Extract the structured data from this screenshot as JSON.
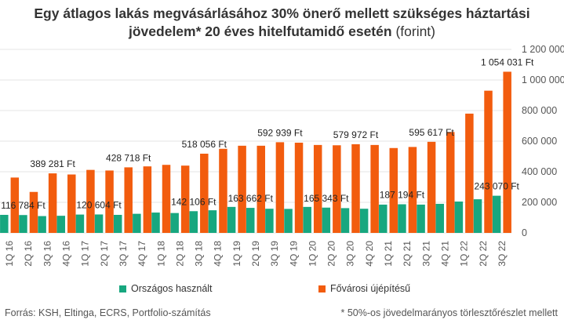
{
  "title": {
    "main": "Egy átlagos lakás megvásárlásához 30% önerő mellett szükséges háztartási",
    "line2_bold": "jövedelem* 20 éves hitelfutamidő esetén",
    "line2_unit": "(forint)"
  },
  "footer": {
    "source": "Forrás: KSH, Eltinga, ECRS, Portfolio-számítás",
    "note": "* 50%-os jövedelmarányos törlesztőrészlet mellett"
  },
  "colors": {
    "teal": "#17a77f",
    "orange": "#f25c0e",
    "grid": "#e6e6e6"
  },
  "chart_data": {
    "type": "bar",
    "categories": [
      "1Q 16",
      "2Q 16",
      "3Q 16",
      "4Q 16",
      "1Q 17",
      "2Q 17",
      "3Q 17",
      "4Q 17",
      "1Q 18",
      "2Q 18",
      "3Q 18",
      "4Q 18",
      "1Q 19",
      "2Q 19",
      "3Q 19",
      "4Q 19",
      "1Q 20",
      "2Q 20",
      "3Q 20",
      "4Q 20",
      "1Q 21",
      "2Q 21",
      "3Q 21",
      "4Q 21",
      "1Q 22",
      "2Q 22",
      "3Q 22"
    ],
    "series": [
      {
        "name": "Országos használt",
        "color": "#17a77f",
        "values": [
          118000,
          116784,
          110000,
          112000,
          120000,
          120604,
          118000,
          125000,
          133000,
          130000,
          142106,
          148000,
          170000,
          163662,
          158000,
          157000,
          170000,
          165343,
          162000,
          158000,
          185000,
          187194,
          185000,
          190000,
          205000,
          220000,
          243070
        ]
      },
      {
        "name": "Fővárosi újépítésű",
        "color": "#f25c0e",
        "values": [
          362000,
          268000,
          389281,
          382000,
          412000,
          408000,
          428718,
          435000,
          445000,
          440000,
          518056,
          550000,
          570000,
          570000,
          592939,
          590000,
          575000,
          573000,
          579972,
          575000,
          555000,
          562000,
          595617,
          660000,
          780000,
          930000,
          1054031
        ]
      }
    ],
    "ylim": [
      0,
      1200000
    ],
    "yticks": [
      0,
      200000,
      400000,
      600000,
      800000,
      1000000,
      1200000
    ],
    "ytick_labels": [
      "0",
      "200 000",
      "400 000",
      "600 000",
      "800 000",
      "1 000 000",
      "1 200 000"
    ],
    "y_axis_side": "right",
    "grid": true,
    "data_labels": [
      {
        "series": 1,
        "index": 2,
        "text": "389 281 Ft"
      },
      {
        "series": 1,
        "index": 6,
        "text": "428 718 Ft"
      },
      {
        "series": 1,
        "index": 10,
        "text": "518 056 Ft"
      },
      {
        "series": 1,
        "index": 14,
        "text": "592 939 Ft"
      },
      {
        "series": 1,
        "index": 18,
        "text": "579 972 Ft"
      },
      {
        "series": 1,
        "index": 22,
        "text": "595 617 Ft"
      },
      {
        "series": 1,
        "index": 26,
        "text": "1 054 031 Ft"
      },
      {
        "series": 0,
        "index": 1,
        "text": "116 784 Ft"
      },
      {
        "series": 0,
        "index": 5,
        "text": "120 604 Ft"
      },
      {
        "series": 0,
        "index": 10,
        "text": "142 106 Ft"
      },
      {
        "series": 0,
        "index": 13,
        "text": "163 662 Ft"
      },
      {
        "series": 0,
        "index": 17,
        "text": "165 343 Ft"
      },
      {
        "series": 0,
        "index": 21,
        "text": "187 194 Ft"
      },
      {
        "series": 0,
        "index": 26,
        "text": "243 070 Ft"
      }
    ],
    "legend_position": "bottom"
  }
}
